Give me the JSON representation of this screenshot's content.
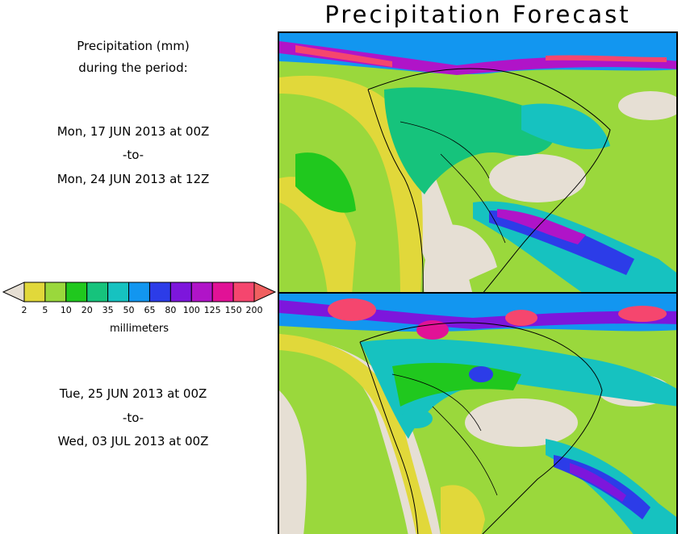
{
  "title": "Precipitation Forecast",
  "period_header": {
    "line1": "Precipitation (mm)",
    "line2": "during the period:"
  },
  "period1": {
    "start": "Mon, 17 JUN 2013 at 00Z",
    "sep": "-to-",
    "end": "Mon, 24 JUN 2013 at 12Z"
  },
  "period2": {
    "start": "Tue, 25 JUN 2013 at 00Z",
    "sep": "-to-",
    "end": "Wed, 03 JUL 2013 at 00Z"
  },
  "legend": {
    "unit": "millimeters",
    "ticks": [
      "2",
      "5",
      "10",
      "20",
      "35",
      "50",
      "65",
      "80",
      "100",
      "125",
      "150",
      "200"
    ],
    "colors": [
      "#e6dfd4",
      "#e1d83a",
      "#9ad83c",
      "#20c81e",
      "#16c37c",
      "#16c2c0",
      "#1296f0",
      "#2c3ce8",
      "#7d16dc",
      "#b014c8",
      "#e11296",
      "#f5466e",
      "#f06060"
    ]
  }
}
